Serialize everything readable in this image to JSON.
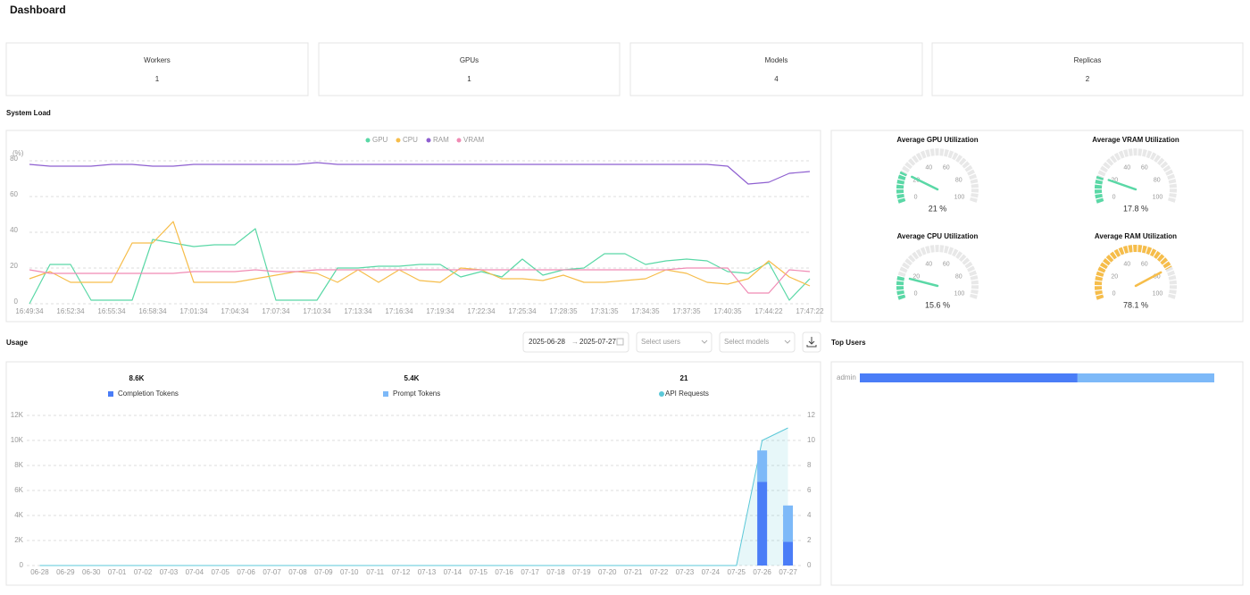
{
  "header": {
    "title": "Dashboard"
  },
  "stats": [
    {
      "label": "Workers",
      "value": 1
    },
    {
      "label": "GPUs",
      "value": 1
    },
    {
      "label": "Models",
      "value": 4
    },
    {
      "label": "Replicas",
      "value": 2
    }
  ],
  "sections": {
    "system_load": "System Load",
    "usage": "Usage",
    "top_users": "Top Users"
  },
  "usage_filters": {
    "start_date": "2025-06-28",
    "end_date": "2025-07-27",
    "users_placeholder": "Select users",
    "models_placeholder": "Select models"
  },
  "chart_data": [
    {
      "type": "line",
      "y_label": "(%)",
      "categories": [
        "16:49:34",
        null,
        "16:52:34",
        null,
        "16:55:34",
        null,
        "16:58:34",
        null,
        "17:01:34",
        null,
        "17:04:34",
        null,
        "17:07:34",
        null,
        "17:10:34",
        null,
        "17:13:34",
        null,
        "17:16:34",
        null,
        "17:19:34",
        null,
        "17:22:34",
        null,
        "17:25:34",
        null,
        "17:28:35",
        null,
        "17:31:35",
        null,
        "17:34:35",
        null,
        "17:37:35",
        null,
        "17:40:35",
        null,
        "17:44:22",
        null,
        "17:47:22"
      ],
      "series": [
        {
          "name": "GPU",
          "color": "#5ad8a6",
          "values": [
            0,
            22,
            22,
            2,
            2,
            2,
            36,
            34,
            32,
            33,
            33,
            42,
            2,
            2,
            2,
            20,
            20,
            21,
            21,
            22,
            22,
            15,
            18,
            15,
            25,
            16,
            19,
            20,
            28,
            28,
            22,
            24,
            25,
            24,
            18,
            17,
            23,
            2,
            14
          ]
        },
        {
          "name": "CPU",
          "color": "#f6bd4a",
          "values": [
            14,
            18,
            12,
            12,
            12,
            34,
            34,
            46,
            12,
            12,
            12,
            14,
            16,
            18,
            17,
            12,
            19,
            12,
            19,
            13,
            12,
            20,
            19,
            14,
            14,
            13,
            16,
            12,
            12,
            13,
            14,
            19,
            17,
            12,
            11,
            14,
            24,
            15,
            10
          ]
        },
        {
          "name": "RAM",
          "color": "#8e5fd0",
          "values": [
            78,
            77,
            77,
            77,
            78,
            78,
            77,
            77,
            78,
            78,
            78,
            78,
            78,
            78,
            79,
            78,
            78,
            78,
            78,
            78,
            78,
            78,
            78,
            78,
            78,
            78,
            78,
            78,
            78,
            78,
            78,
            78,
            78,
            78,
            77,
            67,
            68,
            73,
            74
          ]
        },
        {
          "name": "VRAM",
          "color": "#f08bb4",
          "values": [
            19,
            17,
            17,
            17,
            17,
            17,
            17,
            17,
            18,
            18,
            18,
            19,
            18,
            18,
            19,
            19,
            19,
            19,
            19,
            19,
            19,
            19,
            19,
            19,
            19,
            19,
            19,
            19,
            19,
            19,
            19,
            19,
            20,
            20,
            20,
            6,
            6,
            19,
            18
          ]
        }
      ],
      "ylim": [
        0,
        85
      ],
      "yticks": [
        0,
        20,
        40,
        60,
        80
      ],
      "grid": true
    },
    {
      "type": "gauge",
      "title": "Average GPU Utilization",
      "value": 21,
      "value_label": "21 %",
      "color": "#5ad8a6",
      "ylim": [
        0,
        100
      ],
      "yticks": [
        0,
        20,
        40,
        60,
        80,
        100
      ]
    },
    {
      "type": "gauge",
      "title": "Average VRAM Utilization",
      "value": 17.8,
      "value_label": "17.8 %",
      "color": "#5ad8a6",
      "ylim": [
        0,
        100
      ],
      "yticks": [
        0,
        20,
        40,
        60,
        80,
        100
      ]
    },
    {
      "type": "gauge",
      "title": "Average CPU Utilization",
      "value": 15.6,
      "value_label": "15.6 %",
      "color": "#5ad8a6",
      "ylim": [
        0,
        100
      ],
      "yticks": [
        0,
        20,
        40,
        60,
        80,
        100
      ]
    },
    {
      "type": "gauge",
      "title": "Average RAM Utilization",
      "value": 78.1,
      "value_label": "78.1 %",
      "color": "#f6bd4a",
      "ylim": [
        0,
        100
      ],
      "yticks": [
        0,
        20,
        40,
        60,
        80,
        100
      ]
    },
    {
      "type": "stacked_bar",
      "categories": [
        "06-28",
        "06-29",
        "06-30",
        "07-01",
        "07-02",
        "07-03",
        "07-04",
        "07-05",
        "07-06",
        "07-07",
        "07-08",
        "07-09",
        "07-10",
        "07-11",
        "07-12",
        "07-13",
        "07-14",
        "07-15",
        "07-16",
        "07-17",
        "07-18",
        "07-19",
        "07-20",
        "07-21",
        "07-22",
        "07-23",
        "07-24",
        "07-25",
        "07-26",
        "07-27"
      ],
      "series": [
        {
          "name": "Completion Tokens",
          "total": "8.6K",
          "color": "#4a7df7",
          "values": [
            0,
            0,
            0,
            0,
            0,
            0,
            0,
            0,
            0,
            0,
            0,
            0,
            0,
            0,
            0,
            0,
            0,
            0,
            0,
            0,
            0,
            0,
            0,
            0,
            0,
            0,
            0,
            0,
            6700,
            1900
          ]
        },
        {
          "name": "Prompt Tokens",
          "total": "5.4K",
          "color": "#7db9f8",
          "values": [
            0,
            0,
            0,
            0,
            0,
            0,
            0,
            0,
            0,
            0,
            0,
            0,
            0,
            0,
            0,
            0,
            0,
            0,
            0,
            0,
            0,
            0,
            0,
            0,
            0,
            0,
            0,
            0,
            2500,
            2900
          ]
        },
        {
          "name": "API Requests",
          "total": "21",
          "color": "#5bc8d8",
          "axis": "y2",
          "values": [
            0,
            0,
            0,
            0,
            0,
            0,
            0,
            0,
            0,
            0,
            0,
            0,
            0,
            0,
            0,
            0,
            0,
            0,
            0,
            0,
            0,
            0,
            0,
            0,
            0,
            0,
            0,
            0,
            10,
            11
          ]
        }
      ],
      "ylim": [
        0,
        12000
      ],
      "yticks": [
        0,
        {
          "value": 2000,
          "label": "2K"
        },
        {
          "value": 4000,
          "label": "4K"
        },
        {
          "value": 6000,
          "label": "6K"
        },
        {
          "value": 8000,
          "label": "8K"
        },
        {
          "value": 10000,
          "label": "10K"
        },
        {
          "value": 12000,
          "label": "12K"
        }
      ],
      "y2lim": [
        0,
        12
      ],
      "y2ticks": [
        0,
        2,
        4,
        6,
        8,
        10,
        12
      ],
      "grid": true
    },
    {
      "type": "hbar_stacked",
      "categories": [
        "admin"
      ],
      "series": [
        {
          "color": "#4a7df7",
          "values": [
            8600
          ]
        },
        {
          "color": "#7db9f8",
          "values": [
            5400
          ]
        }
      ],
      "xlim": [
        0,
        14000
      ]
    }
  ]
}
